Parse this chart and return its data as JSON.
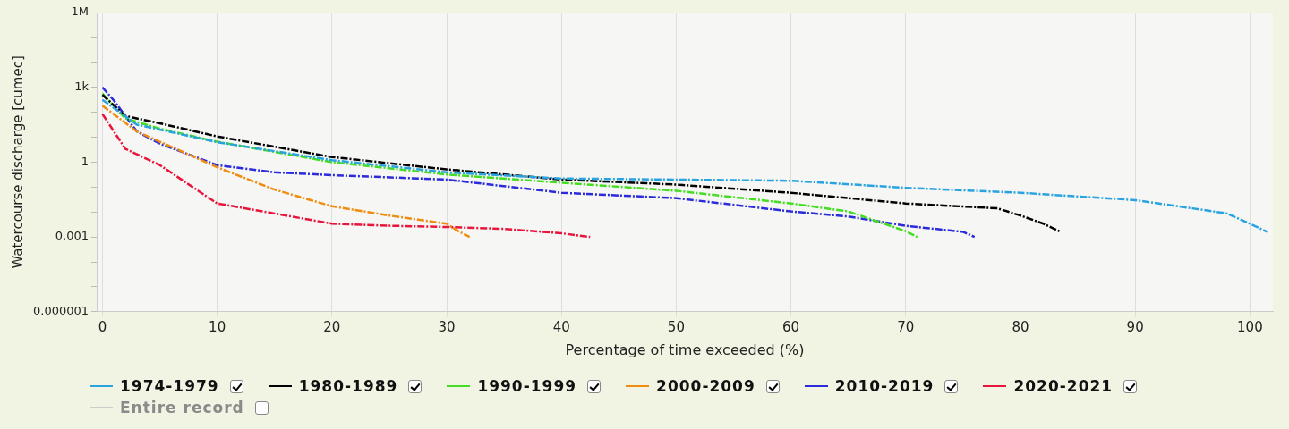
{
  "chart_data": {
    "type": "line",
    "xlabel": "Percentage of time exceeded (%)",
    "ylabel": "Watercourse discharge [cumec]",
    "log": "y",
    "grid": "x",
    "legend": "bottom",
    "marker": "none",
    "line_style": "dashed",
    "xlim": [
      -0.5,
      102
    ],
    "xticks": [
      0,
      10,
      20,
      30,
      40,
      50,
      60,
      70,
      80,
      90,
      100
    ],
    "ylim": [
      1e-06,
      1000000
    ],
    "yticks": [
      {
        "value": 1e-06,
        "label": "0.000001"
      },
      {
        "value": 1e-05,
        "label": null
      },
      {
        "value": 0.0001,
        "label": null
      },
      {
        "value": 0.001,
        "label": "0.001"
      },
      {
        "value": 0.01,
        "label": null
      },
      {
        "value": 0.1,
        "label": null
      },
      {
        "value": 1,
        "label": "1"
      },
      {
        "value": 10,
        "label": null
      },
      {
        "value": 100,
        "label": null
      },
      {
        "value": 1000,
        "label": "1k"
      },
      {
        "value": 10000,
        "label": null
      },
      {
        "value": 100000,
        "label": null
      },
      {
        "value": 1000000,
        "label": "1M"
      }
    ],
    "series": [
      {
        "name": "1974-1979",
        "color": "#29a3e0",
        "x": [
          0,
          3,
          10,
          20,
          30,
          40,
          50,
          60,
          70,
          80,
          90,
          95,
          98,
          100,
          101.5
        ],
        "values": [
          316,
          32,
          6.3,
          1.2,
          0.39,
          0.22,
          0.2,
          0.18,
          0.093,
          0.059,
          0.03,
          0.014,
          0.0087,
          0.0034,
          0.0016
        ]
      },
      {
        "name": "1980-1989",
        "color": "#000000",
        "x": [
          0,
          2,
          5,
          10,
          20,
          30,
          40,
          50,
          60,
          70,
          78,
          80,
          82,
          83.5
        ],
        "values": [
          500,
          71,
          36,
          10.7,
          1.6,
          0.51,
          0.2,
          0.126,
          0.059,
          0.022,
          0.014,
          0.0072,
          0.0034,
          0.0016
        ]
      },
      {
        "name": "1990-1999",
        "color": "#44dd22",
        "x": [
          0,
          2,
          5,
          10,
          20,
          30,
          40,
          50,
          60,
          65,
          70,
          71
        ],
        "values": [
          562,
          56,
          22,
          6.6,
          1,
          0.32,
          0.15,
          0.071,
          0.022,
          0.0105,
          0.0017,
          0.001
        ]
      },
      {
        "name": "2000-2009",
        "color": "#f08c10",
        "x": [
          0,
          3,
          5,
          10,
          15,
          20,
          25,
          30,
          31,
          32
        ],
        "values": [
          182,
          17,
          6.6,
          0.62,
          0.079,
          0.017,
          0.0072,
          0.0034,
          0.0017,
          0.001
        ]
      },
      {
        "name": "2010-2019",
        "color": "#2b2bdc",
        "x": [
          0,
          1,
          3,
          5,
          10,
          15,
          20,
          30,
          40,
          50,
          60,
          65,
          70,
          75,
          76
        ],
        "values": [
          1000,
          295,
          17,
          5.5,
          0.76,
          0.39,
          0.3,
          0.2,
          0.059,
          0.036,
          0.0105,
          0.0066,
          0.0028,
          0.0016,
          0.001
        ]
      },
      {
        "name": "2020-2021",
        "color": "#e8163c",
        "x": [
          0,
          2,
          5,
          10,
          15,
          20,
          25,
          30,
          35,
          40,
          42.5
        ],
        "values": [
          85,
          3.4,
          0.76,
          0.022,
          0.0087,
          0.0034,
          0.0028,
          0.0025,
          0.0021,
          0.0014,
          0.001
        ]
      },
      {
        "name": "Entire record",
        "color": "#cccccc"
      }
    ]
  }
}
